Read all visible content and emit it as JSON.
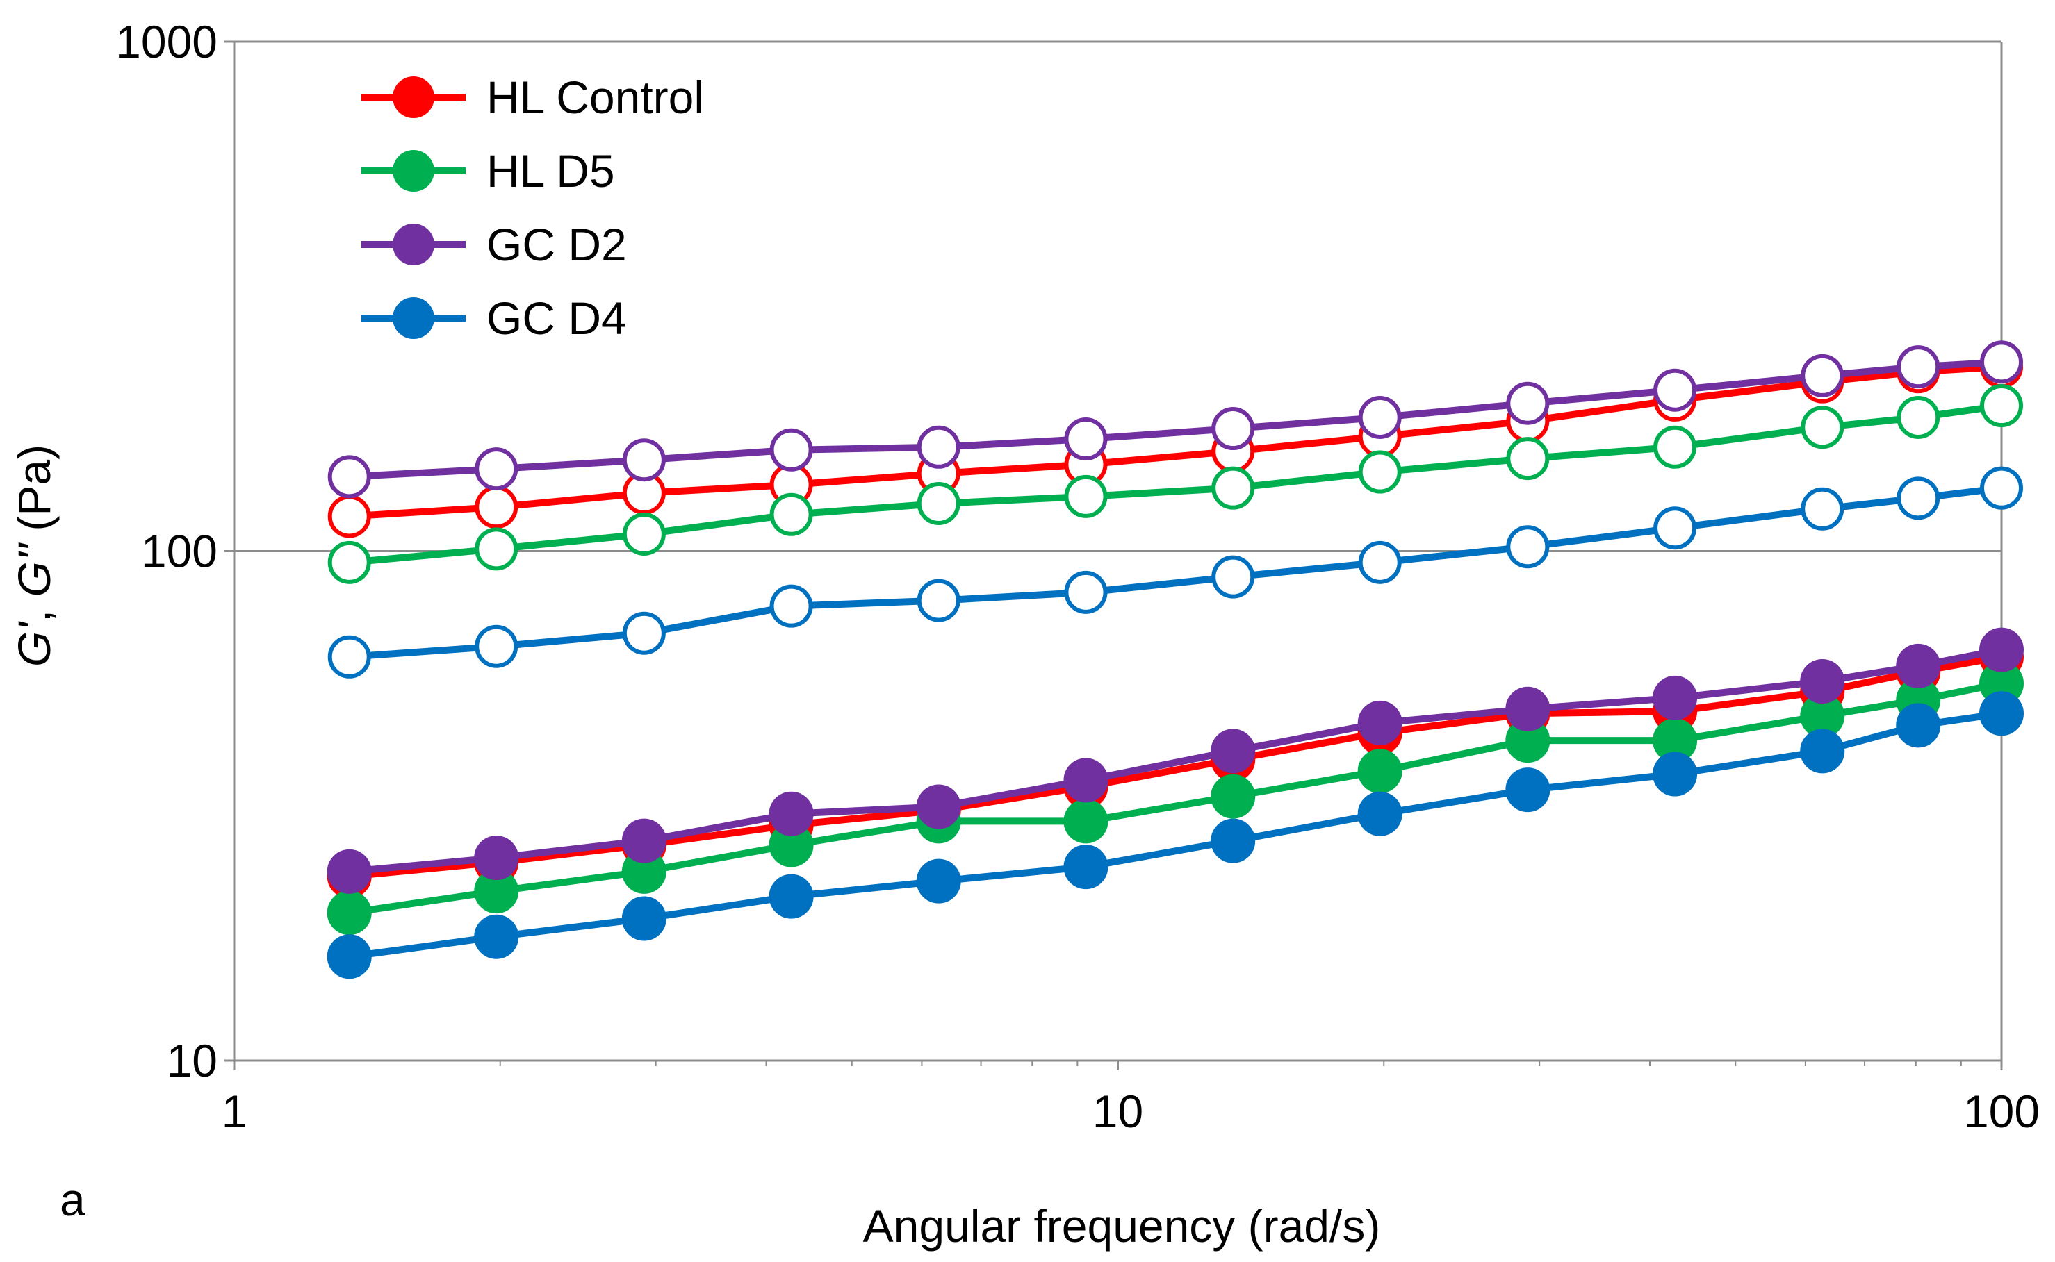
{
  "chart_data": {
    "type": "line",
    "title": "",
    "panel_label": "a",
    "xlabel": "Angular frequency (rad/s)",
    "ylabel": {
      "g_prime": "G'",
      "separator": ", ",
      "g_double_prime": "G''",
      "units": " (Pa)"
    },
    "xscale": "log",
    "yscale": "log",
    "xlim": [
      1,
      100
    ],
    "ylim": [
      10,
      1000
    ],
    "x_ticks": [
      {
        "value": 1,
        "label": "1"
      },
      {
        "value": 10,
        "label": "10"
      },
      {
        "value": 100,
        "label": "100"
      }
    ],
    "y_ticks": [
      {
        "value": 10,
        "label": "10"
      },
      {
        "value": 100,
        "label": "100"
      },
      {
        "value": 1000,
        "label": "1000"
      }
    ],
    "gridlines": "horizontal major",
    "legend_position": "top-left",
    "x": [
      1.35,
      1.98,
      2.91,
      4.27,
      6.27,
      9.2,
      13.5,
      19.8,
      29.1,
      42.7,
      62.7,
      80.5,
      100
    ],
    "series": [
      {
        "name": "HL Control",
        "color": "#ff0000",
        "storage_modulus_G_prime": [
          117,
          122,
          130,
          135,
          142,
          148,
          157,
          168,
          180,
          198,
          215,
          225,
          230
        ],
        "loss_modulus_G_double_prime": [
          23,
          24.5,
          26.5,
          29,
          31,
          34.5,
          39,
          44,
          48,
          48.5,
          53,
          58,
          62
        ]
      },
      {
        "name": "HL D5",
        "color": "#00b050",
        "storage_modulus_G_prime": [
          95,
          101,
          108,
          118,
          124,
          128,
          133,
          143,
          152,
          160,
          175,
          183,
          193
        ],
        "loss_modulus_G_double_prime": [
          19.5,
          21.5,
          23.5,
          26.5,
          29.5,
          29.5,
          33,
          37,
          42.5,
          42.5,
          47.5,
          51,
          55
        ]
      },
      {
        "name": "GC D2",
        "color": "#7030a0",
        "storage_modulus_G_prime": [
          140,
          145,
          151,
          158,
          160,
          166,
          174,
          183,
          195,
          207,
          221,
          230,
          235
        ],
        "loss_modulus_G_double_prime": [
          23.5,
          25,
          27,
          30.5,
          31.5,
          35.5,
          40.5,
          46,
          49,
          51.5,
          55.5,
          59.5,
          64
        ]
      },
      {
        "name": "GC D4",
        "color": "#0070c0",
        "storage_modulus_G_prime": [
          62,
          65,
          69,
          78,
          80,
          83,
          89,
          95,
          102,
          111,
          121,
          127,
          133
        ],
        "loss_modulus_G_double_prime": [
          16,
          17.5,
          19,
          21,
          22.5,
          24,
          27,
          30.5,
          34,
          36.5,
          40.5,
          45.5,
          48
        ]
      }
    ]
  }
}
